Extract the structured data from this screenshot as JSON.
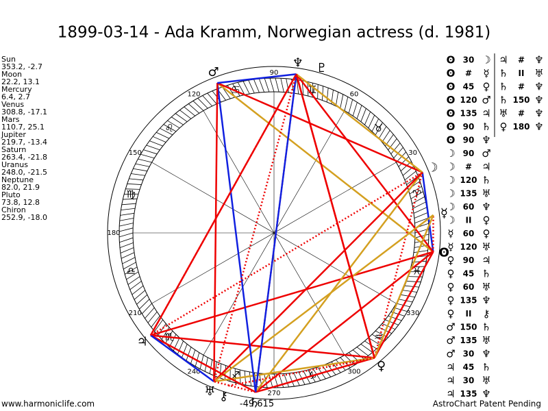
{
  "title": "1899-03-14 - Ada Kramm, Norwegian actress (d. 1981)",
  "planets": [
    {
      "name": "Sun",
      "glyph": "ʘ",
      "coords": "353.2, -2.7"
    },
    {
      "name": "Moon",
      "glyph": "☽",
      "coords": "22.2, 13.1"
    },
    {
      "name": "Mercury",
      "glyph": "☿",
      "coords": "6.4, 2.7"
    },
    {
      "name": "Venus",
      "glyph": "♀",
      "coords": "308.8, -17.1"
    },
    {
      "name": "Mars",
      "glyph": "♂",
      "coords": "110.7, 25.1"
    },
    {
      "name": "Jupiter",
      "glyph": "♃",
      "coords": "219.7, -13.4"
    },
    {
      "name": "Saturn",
      "glyph": "♄",
      "coords": "263.4, -21.8"
    },
    {
      "name": "Uranus",
      "glyph": "♅",
      "coords": "248.0, -21.5"
    },
    {
      "name": "Neptune",
      "glyph": "♆",
      "coords": "82.0, 21.9"
    },
    {
      "name": "Pluto",
      "glyph": "♇",
      "coords": "73.8, 12.8"
    },
    {
      "name": "Chiron",
      "glyph": "⚷",
      "coords": "252.9, -18.0"
    }
  ],
  "signs": [
    "♈",
    "♉",
    "♊",
    "♋",
    "♌",
    "♍",
    "♎",
    "♏",
    "♐",
    "♑",
    "♒",
    "♓"
  ],
  "degree_labels": [
    {
      "deg": "30"
    },
    {
      "deg": "60"
    },
    {
      "deg": "90"
    },
    {
      "deg": "120"
    },
    {
      "deg": "150"
    },
    {
      "deg": "180"
    },
    {
      "deg": "210"
    },
    {
      "deg": "240"
    },
    {
      "deg": "270"
    },
    {
      "deg": "300"
    },
    {
      "deg": "330"
    }
  ],
  "aspects_col1": [
    [
      "ʘ",
      "30",
      "☽"
    ],
    [
      "ʘ",
      "#",
      "☿"
    ],
    [
      "ʘ",
      "45",
      "♀"
    ],
    [
      "ʘ",
      "120",
      "♂"
    ],
    [
      "ʘ",
      "135",
      "♃"
    ],
    [
      "ʘ",
      "90",
      "♄"
    ],
    [
      "ʘ",
      "90",
      "♆"
    ],
    [
      "☽",
      "90",
      "♂"
    ],
    [
      "☽",
      "#",
      "♃"
    ],
    [
      "☽",
      "120",
      "♄"
    ],
    [
      "☽",
      "135",
      "♅"
    ],
    [
      "☽",
      "60",
      "♆"
    ],
    [
      "☽",
      "II",
      "♀"
    ],
    [
      "☿",
      "60",
      "♀"
    ],
    [
      "☿",
      "120",
      "♅"
    ],
    [
      "♀",
      "90",
      "♃"
    ],
    [
      "♀",
      "45",
      "♄"
    ],
    [
      "♀",
      "60",
      "♅"
    ],
    [
      "♀",
      "135",
      "♆"
    ],
    [
      "♀",
      "II",
      "⚷"
    ],
    [
      "♂",
      "150",
      "♄"
    ],
    [
      "♂",
      "135",
      "♅"
    ],
    [
      "♂",
      "30",
      "♆"
    ],
    [
      "♃",
      "45",
      "♄"
    ],
    [
      "♃",
      "30",
      "♅"
    ],
    [
      "♃",
      "135",
      "♆"
    ]
  ],
  "aspects_col2": [
    [
      "♃",
      "#",
      "♆"
    ],
    [
      "♄",
      "II",
      "♅"
    ],
    [
      "♄",
      "#",
      "♆"
    ],
    [
      "♄",
      "150",
      "♆"
    ],
    [
      "♅",
      "#",
      "♆"
    ],
    [
      "♀",
      "180",
      "♆"
    ]
  ],
  "center_label": "-49,615",
  "footer_left": "www.harmoniclife.com",
  "footer_right": "AstroChart Patent Pending"
}
